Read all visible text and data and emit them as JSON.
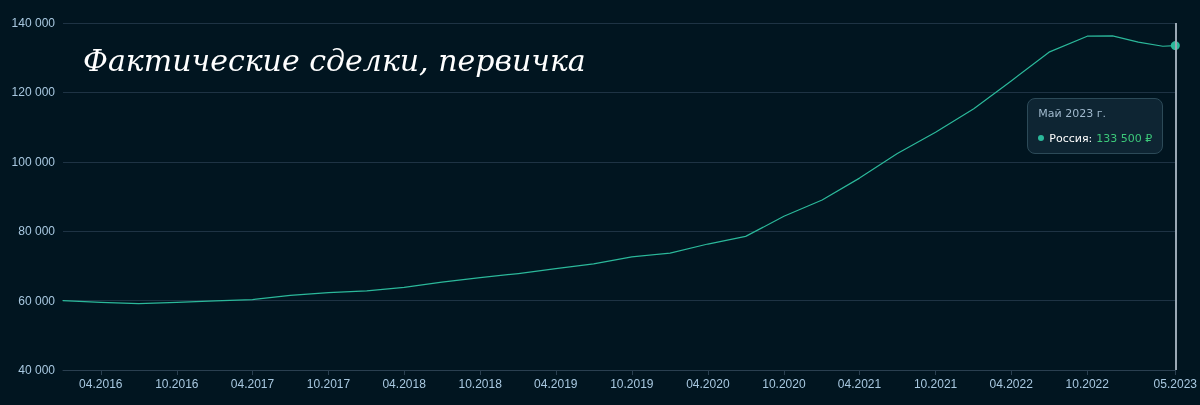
{
  "chart_data": {
    "type": "line",
    "title": "Фактические сделки, первичка",
    "x": [
      "2016-01",
      "2016-04",
      "2016-07",
      "2016-10",
      "2017-01",
      "2017-04",
      "2017-07",
      "2017-10",
      "2018-01",
      "2018-04",
      "2018-07",
      "2018-10",
      "2019-01",
      "2019-04",
      "2019-07",
      "2019-10",
      "2020-01",
      "2020-04",
      "2020-07",
      "2020-10",
      "2021-01",
      "2021-04",
      "2021-07",
      "2021-10",
      "2022-01",
      "2022-04",
      "2022-07",
      "2022-10",
      "2022-12",
      "2023-02",
      "2023-04",
      "2023-05"
    ],
    "series": [
      {
        "color": "#2bb89a",
        "values": [
          60000,
          59500,
          59100,
          59500,
          59900,
          60300,
          61500,
          62300,
          62800,
          63800,
          65300,
          66600,
          67800,
          69200,
          70600,
          72600,
          73700,
          76300,
          78500,
          84300,
          89000,
          95300,
          102400,
          108500,
          115300,
          123300,
          131600,
          136200,
          136300,
          134500,
          133300,
          133500
        ]
      }
    ],
    "xlim": [
      "2016-01",
      "2023-05"
    ],
    "xticks": [
      {
        "value": "2016-04",
        "label": "04.2016"
      },
      {
        "value": "2016-10",
        "label": "10.2016"
      },
      {
        "value": "2017-04",
        "label": "04.2017"
      },
      {
        "value": "2017-10",
        "label": "10.2017"
      },
      {
        "value": "2018-04",
        "label": "04.2018"
      },
      {
        "value": "2018-10",
        "label": "10.2018"
      },
      {
        "value": "2019-04",
        "label": "04.2019"
      },
      {
        "value": "2019-10",
        "label": "10.2019"
      },
      {
        "value": "2020-04",
        "label": "04.2020"
      },
      {
        "value": "2020-10",
        "label": "10.2020"
      },
      {
        "value": "2021-04",
        "label": "04.2021"
      },
      {
        "value": "2021-10",
        "label": "10.2021"
      },
      {
        "value": "2022-04",
        "label": "04.2022"
      },
      {
        "value": "2022-10",
        "label": "10.2022"
      },
      {
        "value": "2023-05",
        "label": "05.2023"
      }
    ],
    "ylim": [
      40000,
      140000
    ],
    "yticks": [
      {
        "value": 40000,
        "label": "40 000"
      },
      {
        "value": 60000,
        "label": "60 000"
      },
      {
        "value": 80000,
        "label": "80 000"
      },
      {
        "value": 100000,
        "label": "100 000"
      },
      {
        "value": 120000,
        "label": "120 000"
      },
      {
        "value": 140000,
        "label": "140 000"
      }
    ],
    "grid": "y",
    "marker": "none",
    "line_style": "solid",
    "ref_lines": [
      {
        "axis": "x",
        "value": "2023-05",
        "color": "#9aa8b4"
      }
    ],
    "annotations": [
      "Май 2023 г.",
      "Россия:",
      "133 500 ₽"
    ]
  }
}
